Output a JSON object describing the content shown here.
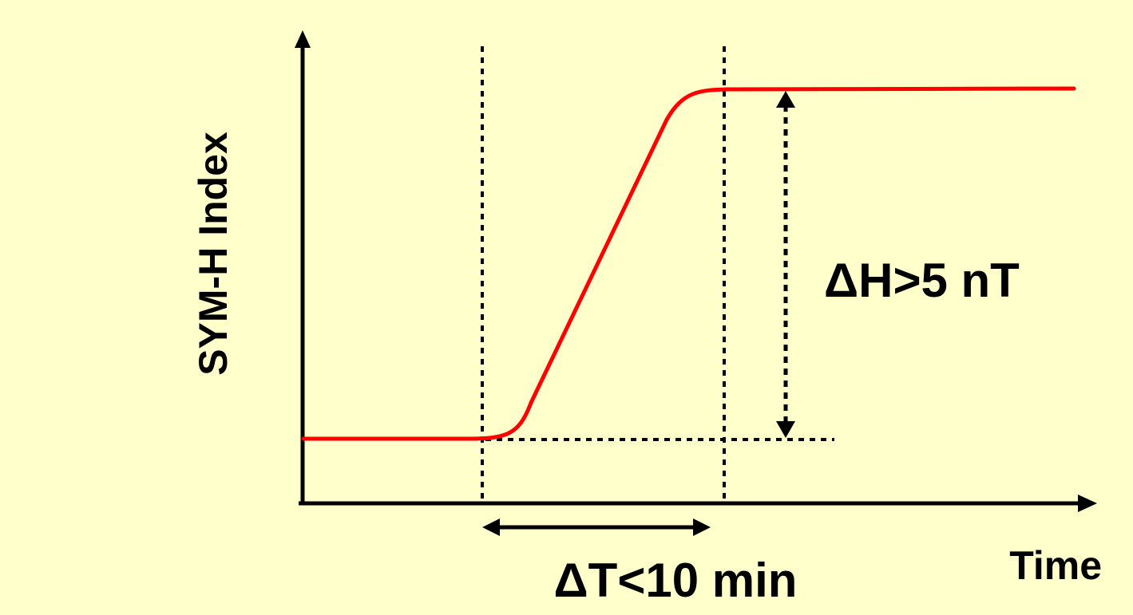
{
  "figure": {
    "y_axis_label": "SYM-H Index",
    "x_axis_label": "Time",
    "delta_h_label": "ΔH>5 nT",
    "delta_t_label": "ΔT<10 min"
  },
  "colors": {
    "background": "#ffffcc",
    "curve": "#ff0000",
    "axes": "#000000"
  }
}
